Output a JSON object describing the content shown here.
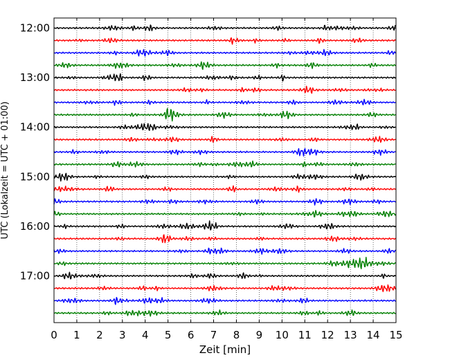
{
  "chart_data": {
    "type": "line",
    "title": "",
    "xlabel": "Zeit  [min]",
    "ylabel": "UTC (Lokalzeit = UTC + 01:00)",
    "xlim": [
      0,
      15
    ],
    "x_ticks": [
      0,
      1,
      2,
      3,
      4,
      5,
      6,
      7,
      8,
      9,
      10,
      11,
      12,
      13,
      14,
      15
    ],
    "y_tick_labels": [
      "12:00",
      "13:00",
      "14:00",
      "15:00",
      "16:00",
      "17:00"
    ],
    "grid": "vertical dotted at each minute",
    "trace_interval_min": 15,
    "series_colors": [
      "#000000",
      "#ff0000",
      "#0000ff",
      "#007f00"
    ],
    "traces": [
      {
        "start": "12:00",
        "color": "#000000"
      },
      {
        "start": "12:15",
        "color": "#ff0000"
      },
      {
        "start": "12:30",
        "color": "#0000ff"
      },
      {
        "start": "12:45",
        "color": "#007f00"
      },
      {
        "start": "13:00",
        "color": "#000000"
      },
      {
        "start": "13:15",
        "color": "#ff0000"
      },
      {
        "start": "13:30",
        "color": "#0000ff"
      },
      {
        "start": "13:45",
        "color": "#007f00"
      },
      {
        "start": "14:00",
        "color": "#000000"
      },
      {
        "start": "14:15",
        "color": "#ff0000"
      },
      {
        "start": "14:30",
        "color": "#0000ff"
      },
      {
        "start": "14:45",
        "color": "#007f00"
      },
      {
        "start": "15:00",
        "color": "#000000"
      },
      {
        "start": "15:15",
        "color": "#ff0000"
      },
      {
        "start": "15:30",
        "color": "#0000ff"
      },
      {
        "start": "15:45",
        "color": "#007f00"
      },
      {
        "start": "16:00",
        "color": "#000000"
      },
      {
        "start": "16:15",
        "color": "#ff0000"
      },
      {
        "start": "16:30",
        "color": "#0000ff"
      },
      {
        "start": "16:45",
        "color": "#007f00"
      },
      {
        "start": "17:00",
        "color": "#000000"
      },
      {
        "start": "17:15",
        "color": "#ff0000"
      },
      {
        "start": "17:30",
        "color": "#0000ff"
      },
      {
        "start": "17:45",
        "color": "#007f00"
      }
    ]
  }
}
